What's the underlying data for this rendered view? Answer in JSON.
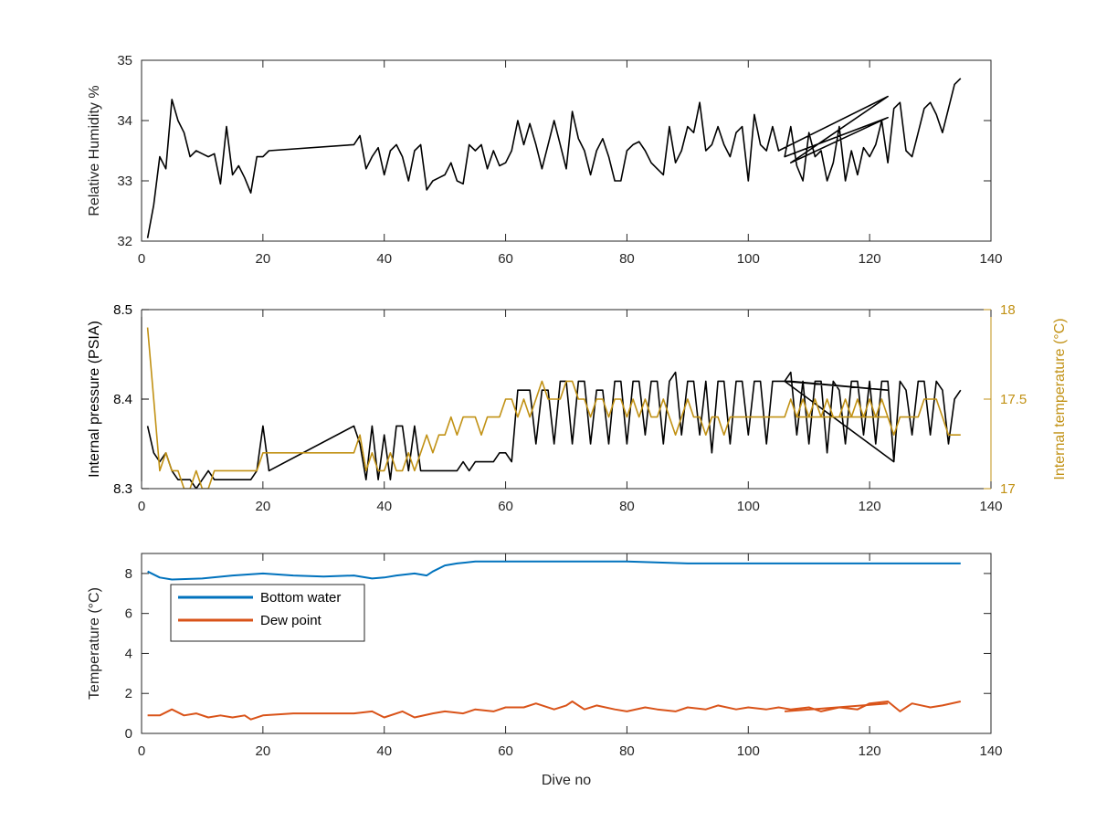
{
  "chart_data": [
    {
      "type": "line",
      "ylabel": "Relative Humidity %",
      "xlim": [
        0,
        140
      ],
      "ylim": [
        32,
        35
      ],
      "xticks": [
        0,
        20,
        40,
        60,
        80,
        100,
        120,
        140
      ],
      "yticks": [
        32,
        33,
        34,
        35
      ],
      "series": [
        {
          "color": "#000000",
          "x": [
            1,
            2,
            3,
            4,
            5,
            6,
            7,
            8,
            9,
            10,
            11,
            12,
            13,
            14,
            15,
            16,
            17,
            18,
            19,
            20,
            21,
            35,
            36,
            37,
            38,
            39,
            40,
            41,
            42,
            43,
            44,
            45,
            46,
            47,
            48,
            49,
            50,
            51,
            52,
            53,
            54,
            55,
            56,
            57,
            58,
            59,
            60,
            61,
            62,
            63,
            64,
            65,
            66,
            67,
            68,
            69,
            70,
            71,
            72,
            73,
            74,
            75,
            76,
            77,
            78,
            79,
            80,
            81,
            82,
            83,
            84,
            85,
            86,
            87,
            88,
            89,
            90,
            91,
            92,
            93,
            94,
            95,
            96,
            97,
            98,
            99,
            100,
            101,
            102,
            103,
            104,
            105,
            123,
            107,
            123,
            106,
            107,
            108,
            109,
            110,
            111,
            112,
            113,
            114,
            115,
            116,
            117,
            118,
            119,
            120,
            121,
            122,
            123,
            124,
            125,
            126,
            127,
            128,
            129,
            130,
            131,
            132,
            133,
            134,
            135
          ],
          "y": [
            32.05,
            32.6,
            33.4,
            33.2,
            34.35,
            34.0,
            33.8,
            33.4,
            33.5,
            33.45,
            33.4,
            33.45,
            32.95,
            33.9,
            33.1,
            33.25,
            33.05,
            32.8,
            33.4,
            33.4,
            33.5,
            33.6,
            33.75,
            33.2,
            33.4,
            33.55,
            33.1,
            33.5,
            33.6,
            33.4,
            33.0,
            33.5,
            33.6,
            32.85,
            33.0,
            33.05,
            33.1,
            33.3,
            33.0,
            32.95,
            33.6,
            33.5,
            33.6,
            33.2,
            33.5,
            33.25,
            33.3,
            33.5,
            34.0,
            33.6,
            33.95,
            33.6,
            33.2,
            33.6,
            34.0,
            33.6,
            33.2,
            34.15,
            33.7,
            33.5,
            33.1,
            33.5,
            33.7,
            33.4,
            33.0,
            33.0,
            33.5,
            33.6,
            33.65,
            33.5,
            33.3,
            33.2,
            33.1,
            33.9,
            33.3,
            33.5,
            33.9,
            33.8,
            34.3,
            33.5,
            33.6,
            33.9,
            33.6,
            33.4,
            33.8,
            33.9,
            33.0,
            34.1,
            33.6,
            33.5,
            33.9,
            33.5,
            34.4,
            33.3,
            34.05,
            33.4,
            33.9,
            33.25,
            33.0,
            33.8,
            33.4,
            33.5,
            33.0,
            33.3,
            33.9,
            33.0,
            33.5,
            33.1,
            33.55,
            33.4,
            33.6,
            34.0,
            33.3,
            34.2,
            34.3,
            33.5,
            33.4,
            33.8,
            34.2,
            34.3,
            34.1,
            33.8,
            34.2,
            34.6,
            34.7
          ]
        }
      ]
    },
    {
      "type": "line",
      "ylabel": "Internal pressure (PSIA)",
      "y2label": "Internal temperature (°C)",
      "xlim": [
        0,
        140
      ],
      "ylim": [
        8.3,
        8.5
      ],
      "y2lim": [
        17,
        18
      ],
      "xticks": [
        0,
        20,
        40,
        60,
        80,
        100,
        120,
        140
      ],
      "yticks": [
        8.3,
        8.4,
        8.5
      ],
      "y2ticks": [
        17,
        17.5,
        18
      ],
      "series": [
        {
          "axis": "left",
          "color": "#000000",
          "x": [
            1,
            2,
            3,
            4,
            5,
            6,
            7,
            8,
            9,
            10,
            11,
            12,
            13,
            14,
            15,
            16,
            17,
            18,
            19,
            20,
            21,
            35,
            36,
            37,
            38,
            39,
            40,
            41,
            42,
            43,
            44,
            45,
            46,
            47,
            48,
            49,
            50,
            51,
            52,
            53,
            54,
            55,
            56,
            57,
            58,
            59,
            60,
            61,
            62,
            63,
            64,
            65,
            66,
            67,
            68,
            69,
            70,
            71,
            72,
            73,
            74,
            75,
            76,
            77,
            78,
            79,
            80,
            81,
            82,
            83,
            84,
            85,
            86,
            87,
            88,
            89,
            90,
            91,
            92,
            93,
            94,
            95,
            96,
            97,
            98,
            99,
            100,
            101,
            102,
            103,
            104,
            105,
            106,
            107,
            123,
            106,
            107,
            108,
            109,
            110,
            111,
            112,
            113,
            114,
            115,
            116,
            117,
            118,
            119,
            120,
            121,
            122,
            123,
            124,
            125,
            126,
            127,
            128,
            129,
            130,
            131,
            132,
            133,
            134,
            135
          ],
          "y": [
            8.37,
            8.34,
            8.33,
            8.34,
            8.32,
            8.31,
            8.31,
            8.31,
            8.3,
            8.31,
            8.32,
            8.31,
            8.31,
            8.31,
            8.31,
            8.31,
            8.31,
            8.31,
            8.32,
            8.37,
            8.32,
            8.37,
            8.35,
            8.31,
            8.37,
            8.31,
            8.36,
            8.31,
            8.37,
            8.37,
            8.32,
            8.37,
            8.32,
            8.32,
            8.32,
            8.32,
            8.32,
            8.32,
            8.32,
            8.33,
            8.32,
            8.33,
            8.33,
            8.33,
            8.33,
            8.34,
            8.34,
            8.33,
            8.41,
            8.41,
            8.41,
            8.35,
            8.41,
            8.41,
            8.35,
            8.42,
            8.42,
            8.35,
            8.42,
            8.42,
            8.35,
            8.41,
            8.41,
            8.35,
            8.42,
            8.42,
            8.35,
            8.42,
            8.42,
            8.36,
            8.42,
            8.42,
            8.35,
            8.42,
            8.43,
            8.36,
            8.42,
            8.42,
            8.36,
            8.42,
            8.34,
            8.42,
            8.42,
            8.35,
            8.42,
            8.42,
            8.36,
            8.42,
            8.42,
            8.35,
            8.42,
            8.42,
            8.42,
            8.42,
            8.41,
            8.42,
            8.43,
            8.36,
            8.42,
            8.35,
            8.42,
            8.42,
            8.34,
            8.42,
            8.41,
            8.35,
            8.42,
            8.42,
            8.36,
            8.42,
            8.35,
            8.42,
            8.42,
            8.33,
            8.42,
            8.41,
            8.36,
            8.42,
            8.42,
            8.36,
            8.42,
            8.41,
            8.35,
            8.4,
            8.41
          ]
        },
        {
          "axis": "left",
          "color": "#000000",
          "x": [
            106,
            124
          ],
          "y": [
            8.42,
            8.33
          ]
        },
        {
          "axis": "right",
          "color": "#C19114",
          "x": [
            1,
            2,
            3,
            4,
            5,
            6,
            7,
            8,
            9,
            10,
            11,
            12,
            13,
            14,
            15,
            16,
            17,
            18,
            19,
            20,
            21,
            35,
            36,
            37,
            38,
            39,
            40,
            41,
            42,
            43,
            44,
            45,
            46,
            47,
            48,
            49,
            50,
            51,
            52,
            53,
            54,
            55,
            56,
            57,
            58,
            59,
            60,
            61,
            62,
            63,
            64,
            65,
            66,
            67,
            68,
            69,
            70,
            71,
            72,
            73,
            74,
            75,
            76,
            77,
            78,
            79,
            80,
            81,
            82,
            83,
            84,
            85,
            86,
            87,
            88,
            89,
            90,
            91,
            92,
            93,
            94,
            95,
            96,
            97,
            98,
            99,
            100,
            101,
            102,
            103,
            104,
            105,
            106,
            107,
            108,
            109,
            110,
            111,
            112,
            113,
            114,
            115,
            116,
            117,
            118,
            119,
            120,
            121,
            122,
            123,
            108,
            123,
            124,
            125,
            126,
            127,
            128,
            129,
            130,
            131,
            132,
            133,
            134,
            135
          ],
          "y": [
            17.9,
            17.5,
            17.1,
            17.2,
            17.1,
            17.1,
            17.0,
            17.0,
            17.1,
            17.0,
            17.0,
            17.1,
            17.1,
            17.1,
            17.1,
            17.1,
            17.1,
            17.1,
            17.1,
            17.2,
            17.2,
            17.2,
            17.3,
            17.1,
            17.2,
            17.1,
            17.1,
            17.2,
            17.1,
            17.1,
            17.2,
            17.1,
            17.2,
            17.3,
            17.2,
            17.3,
            17.3,
            17.4,
            17.3,
            17.4,
            17.4,
            17.4,
            17.3,
            17.4,
            17.4,
            17.4,
            17.5,
            17.5,
            17.4,
            17.5,
            17.4,
            17.5,
            17.6,
            17.5,
            17.5,
            17.5,
            17.6,
            17.6,
            17.5,
            17.5,
            17.4,
            17.5,
            17.5,
            17.4,
            17.5,
            17.5,
            17.4,
            17.5,
            17.4,
            17.5,
            17.4,
            17.4,
            17.5,
            17.4,
            17.3,
            17.4,
            17.5,
            17.4,
            17.4,
            17.3,
            17.4,
            17.4,
            17.3,
            17.4,
            17.4,
            17.4,
            17.4,
            17.4,
            17.4,
            17.4,
            17.4,
            17.4,
            17.4,
            17.5,
            17.4,
            17.5,
            17.4,
            17.5,
            17.4,
            17.5,
            17.4,
            17.4,
            17.5,
            17.4,
            17.5,
            17.4,
            17.5,
            17.4,
            17.5,
            17.4,
            17.4,
            17.4,
            17.3,
            17.4,
            17.4,
            17.4,
            17.4,
            17.5,
            17.5,
            17.5,
            17.4,
            17.3,
            17.3,
            17.3
          ]
        }
      ]
    },
    {
      "type": "line",
      "xlabel": "Dive no",
      "ylabel": "Temperature (°C)",
      "xlim": [
        0,
        140
      ],
      "ylim": [
        0,
        9
      ],
      "xticks": [
        0,
        20,
        40,
        60,
        80,
        100,
        120,
        140
      ],
      "yticks": [
        0,
        2,
        4,
        6,
        8
      ],
      "legend_position": "top-left",
      "series": [
        {
          "name": "Bottom water",
          "color": "#0072BD",
          "x": [
            1,
            3,
            5,
            10,
            15,
            20,
            25,
            30,
            35,
            38,
            40,
            42,
            45,
            47,
            48,
            50,
            52,
            55,
            60,
            70,
            80,
            90,
            100,
            110,
            120,
            125,
            130,
            135
          ],
          "y": [
            8.1,
            7.8,
            7.7,
            7.75,
            7.9,
            8.0,
            7.9,
            7.85,
            7.9,
            7.75,
            7.8,
            7.9,
            8.0,
            7.9,
            8.1,
            8.4,
            8.5,
            8.6,
            8.6,
            8.6,
            8.6,
            8.5,
            8.5,
            8.5,
            8.5,
            8.5,
            8.5,
            8.5
          ]
        },
        {
          "name": "Dew point",
          "color": "#D95319",
          "x": [
            1,
            3,
            5,
            7,
            9,
            11,
            13,
            15,
            17,
            18,
            20,
            25,
            30,
            35,
            38,
            40,
            43,
            45,
            48,
            50,
            53,
            55,
            58,
            60,
            63,
            65,
            68,
            70,
            71,
            73,
            75,
            78,
            80,
            83,
            85,
            88,
            90,
            93,
            95,
            98,
            100,
            103,
            105,
            107,
            110,
            112,
            115,
            118,
            120,
            123,
            125,
            127,
            130,
            132,
            135
          ],
          "y": [
            0.9,
            0.9,
            1.2,
            0.9,
            1.0,
            0.8,
            0.9,
            0.8,
            0.9,
            0.7,
            0.9,
            1.0,
            1.0,
            1.0,
            1.1,
            0.8,
            1.1,
            0.8,
            1.0,
            1.1,
            1.0,
            1.2,
            1.1,
            1.3,
            1.3,
            1.5,
            1.2,
            1.4,
            1.6,
            1.2,
            1.4,
            1.2,
            1.1,
            1.3,
            1.2,
            1.1,
            1.3,
            1.2,
            1.4,
            1.2,
            1.3,
            1.2,
            1.3,
            1.2,
            1.3,
            1.1,
            1.3,
            1.2,
            1.5,
            1.6,
            1.1,
            1.5,
            1.3,
            1.4,
            1.6
          ]
        },
        {
          "name": "",
          "color": "#D95319",
          "x": [
            106,
            123
          ],
          "y": [
            1.1,
            1.5
          ]
        }
      ]
    }
  ]
}
